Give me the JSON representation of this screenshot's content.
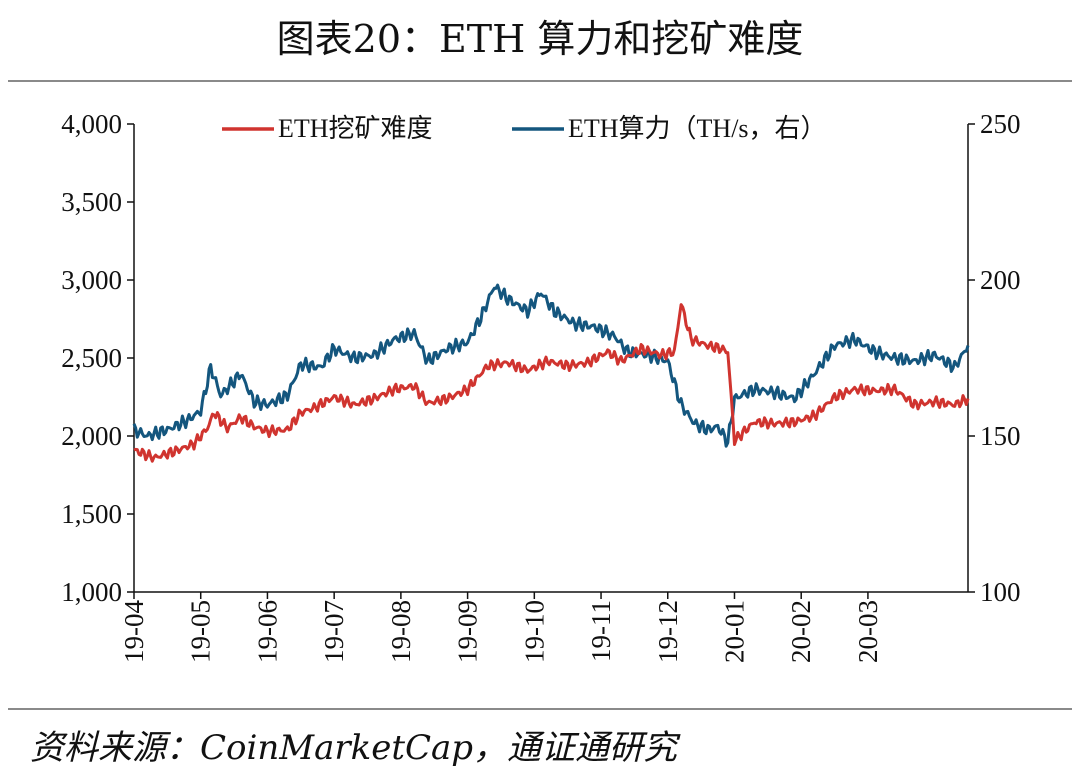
{
  "title": "图表20：ETH 算力和挖矿难度",
  "source": "资料来源：CoinMarketCap，通证通研究",
  "chart_data": {
    "type": "line",
    "left_axis": {
      "ticks": [
        "4,000",
        "3,500",
        "3,000",
        "2,500",
        "2,000",
        "1,500",
        "1,000"
      ],
      "ylim": [
        1000,
        4000
      ]
    },
    "right_axis": {
      "ticks": [
        "250",
        "200",
        "150",
        "100"
      ],
      "ylim": [
        100,
        250
      ]
    },
    "x_ticks": [
      "19-04",
      "19-05",
      "19-06",
      "19-07",
      "19-08",
      "19-09",
      "19-10",
      "19-11",
      "19-12",
      "20-01",
      "20-02",
      "20-03"
    ],
    "x_range": [
      0,
      12.5
    ],
    "legend_position": "top",
    "series": [
      {
        "name": "ETH挖矿难度",
        "axis": "left",
        "color": "#d0342f",
        "points": [
          [
            0.0,
            1910
          ],
          [
            0.3,
            1860
          ],
          [
            0.6,
            1900
          ],
          [
            0.9,
            1950
          ],
          [
            1.1,
            2050
          ],
          [
            1.2,
            2150
          ],
          [
            1.4,
            2050
          ],
          [
            1.6,
            2120
          ],
          [
            1.8,
            2060
          ],
          [
            2.0,
            2030
          ],
          [
            2.3,
            2040
          ],
          [
            2.5,
            2150
          ],
          [
            2.7,
            2180
          ],
          [
            3.0,
            2250
          ],
          [
            3.3,
            2200
          ],
          [
            3.6,
            2240
          ],
          [
            3.9,
            2300
          ],
          [
            4.2,
            2320
          ],
          [
            4.4,
            2210
          ],
          [
            4.7,
            2240
          ],
          [
            5.0,
            2300
          ],
          [
            5.3,
            2450
          ],
          [
            5.6,
            2470
          ],
          [
            5.9,
            2420
          ],
          [
            6.2,
            2480
          ],
          [
            6.5,
            2450
          ],
          [
            6.8,
            2470
          ],
          [
            7.1,
            2540
          ],
          [
            7.3,
            2480
          ],
          [
            7.6,
            2560
          ],
          [
            7.9,
            2520
          ],
          [
            8.1,
            2540
          ],
          [
            8.2,
            2850
          ],
          [
            8.35,
            2620
          ],
          [
            8.6,
            2580
          ],
          [
            8.8,
            2560
          ],
          [
            8.9,
            2540
          ],
          [
            9.0,
            1970
          ],
          [
            9.3,
            2090
          ],
          [
            9.6,
            2080
          ],
          [
            9.9,
            2090
          ],
          [
            10.2,
            2130
          ],
          [
            10.5,
            2250
          ],
          [
            10.8,
            2300
          ],
          [
            11.1,
            2290
          ],
          [
            11.4,
            2300
          ],
          [
            11.7,
            2200
          ],
          [
            12.0,
            2220
          ],
          [
            12.3,
            2200
          ],
          [
            12.5,
            2240
          ]
        ]
      },
      {
        "name": "ETH算力（TH/s，右）",
        "axis": "right",
        "color": "#14567e",
        "points": [
          [
            0.0,
            152
          ],
          [
            0.2,
            150
          ],
          [
            0.5,
            152
          ],
          [
            0.8,
            155
          ],
          [
            1.0,
            158
          ],
          [
            1.15,
            172
          ],
          [
            1.3,
            163
          ],
          [
            1.6,
            170
          ],
          [
            1.8,
            161
          ],
          [
            2.0,
            160
          ],
          [
            2.3,
            163
          ],
          [
            2.5,
            173
          ],
          [
            2.8,
            172
          ],
          [
            3.0,
            178
          ],
          [
            3.3,
            175
          ],
          [
            3.6,
            176
          ],
          [
            3.9,
            181
          ],
          [
            4.2,
            183
          ],
          [
            4.4,
            174
          ],
          [
            4.7,
            178
          ],
          [
            5.0,
            180
          ],
          [
            5.2,
            188
          ],
          [
            5.4,
            198
          ],
          [
            5.6,
            194
          ],
          [
            5.9,
            190
          ],
          [
            6.1,
            196
          ],
          [
            6.3,
            190
          ],
          [
            6.6,
            186
          ],
          [
            6.9,
            185
          ],
          [
            7.2,
            182
          ],
          [
            7.4,
            177
          ],
          [
            7.7,
            176
          ],
          [
            8.0,
            174
          ],
          [
            8.2,
            160
          ],
          [
            8.4,
            154
          ],
          [
            8.6,
            152
          ],
          [
            8.75,
            153
          ],
          [
            8.9,
            148
          ],
          [
            9.0,
            162
          ],
          [
            9.3,
            165
          ],
          [
            9.6,
            164
          ],
          [
            9.9,
            162
          ],
          [
            10.2,
            170
          ],
          [
            10.5,
            179
          ],
          [
            10.8,
            181
          ],
          [
            11.1,
            177
          ],
          [
            11.4,
            175
          ],
          [
            11.7,
            174
          ],
          [
            12.0,
            176
          ],
          [
            12.3,
            172
          ],
          [
            12.5,
            179
          ]
        ]
      }
    ]
  }
}
